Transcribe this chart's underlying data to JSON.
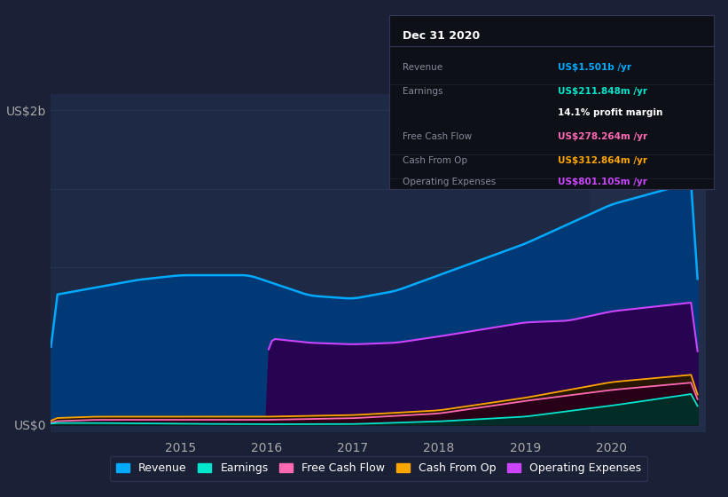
{
  "bg_color": "#1a2035",
  "plot_bg_color": "#1e2a45",
  "ylabel_top": "US$2b",
  "ylabel_bottom": "US$0",
  "xticks": [
    "2015",
    "2016",
    "2017",
    "2018",
    "2019",
    "2020"
  ],
  "info_box": {
    "title": "Dec 31 2020",
    "rows": [
      {
        "label": "Revenue",
        "value": "US$1.501b /yr",
        "value_color": "#00aaff"
      },
      {
        "label": "Earnings",
        "value": "US$211.848m /yr",
        "value_color": "#00e5cc"
      },
      {
        "label": "",
        "value": "14.1% profit margin",
        "value_color": "#ffffff"
      },
      {
        "label": "Free Cash Flow",
        "value": "US$278.264m /yr",
        "value_color": "#ff69b4"
      },
      {
        "label": "Cash From Op",
        "value": "US$312.864m /yr",
        "value_color": "#ffa500"
      },
      {
        "label": "Operating Expenses",
        "value": "US$801.105m /yr",
        "value_color": "#cc44ff"
      }
    ]
  },
  "series": {
    "revenue": {
      "color": "#00aaff",
      "fill_color": "#003a7a",
      "label": "Revenue"
    },
    "operating_expenses": {
      "color": "#cc44ff",
      "fill_color": "#2a0050",
      "label": "Operating Expenses"
    },
    "cash_from_op": {
      "color": "#ffa500",
      "fill_color": "#2a1800",
      "label": "Cash From Op"
    },
    "free_cash_flow": {
      "color": "#ff69b4",
      "fill_color": "#280018",
      "label": "Free Cash Flow"
    },
    "earnings": {
      "color": "#00e5cc",
      "fill_color": "#003028",
      "label": "Earnings"
    }
  },
  "legend": [
    {
      "label": "Revenue",
      "color": "#00aaff"
    },
    {
      "label": "Earnings",
      "color": "#00e5cc"
    },
    {
      "label": "Free Cash Flow",
      "color": "#ff69b4"
    },
    {
      "label": "Cash From Op",
      "color": "#ffa500"
    },
    {
      "label": "Operating Expenses",
      "color": "#cc44ff"
    }
  ]
}
